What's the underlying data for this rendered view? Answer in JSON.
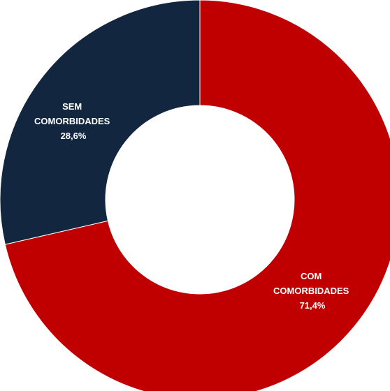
{
  "chart_data": {
    "type": "pie",
    "variant": "donut",
    "title": "",
    "categories": [
      "COM COMORBIDADES",
      "SEM COMORBIDADES"
    ],
    "values": [
      71.4,
      28.6
    ],
    "unit": "%",
    "labels": [
      {
        "line1": "COM",
        "line2": "COMORBIDADES",
        "value_text": "71,4%"
      },
      {
        "line1": "SEM",
        "line2": "COMORBIDADES",
        "value_text": "28,6%"
      }
    ],
    "colors": [
      "#c00000",
      "#12263f"
    ],
    "legend": "none",
    "start_angle_deg": 0,
    "direction": "clockwise"
  }
}
